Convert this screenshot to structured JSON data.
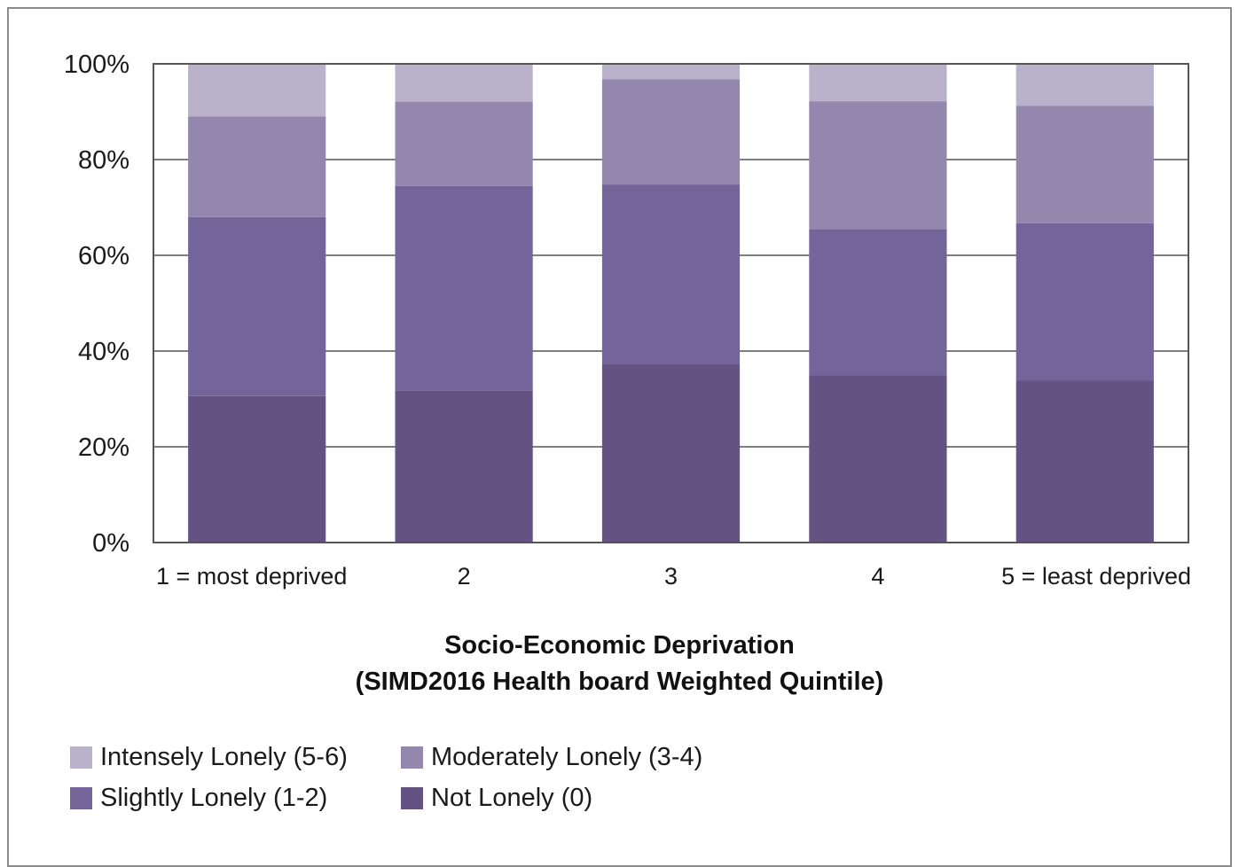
{
  "chart_data": {
    "type": "bar",
    "stacked": true,
    "orientation": "vertical",
    "categories": [
      "1 = most deprived",
      "2",
      "3",
      "4",
      "5 = least deprived"
    ],
    "series": [
      {
        "name": "Not Lonely (0)",
        "color": "#645282",
        "values": [
          30.6,
          31.8,
          37.3,
          34.9,
          33.8
        ]
      },
      {
        "name": "Slightly Lonely (1-2)",
        "color": "#736599",
        "values": [
          37.4,
          42.7,
          37.5,
          30.6,
          32.9
        ]
      },
      {
        "name": "Moderately Lonely (3-4)",
        "color": "#9387ae",
        "values": [
          21.0,
          17.6,
          22.0,
          26.7,
          24.5
        ]
      },
      {
        "name": "Intensely Lonely (5-6)",
        "color": "#bab1ca",
        "values": [
          11.0,
          7.9,
          3.2,
          7.8,
          8.8
        ]
      }
    ],
    "xlabel": [
      "Socio-Economic Deprivation",
      "(SIMD2016 Health board Weighted Quintile)"
    ],
    "ylabel": "",
    "ylim": [
      0,
      100
    ],
    "yticks": [
      "0%",
      "20%",
      "40%",
      "60%",
      "80%",
      "100%"
    ],
    "grid": true,
    "legend_position": "bottom-left",
    "legend_rows": [
      [
        "Intensely Lonely (5-6)",
        "Moderately Lonely (3-4)"
      ],
      [
        "Slightly Lonely (1-2)",
        "Not Lonely (0)"
      ]
    ]
  }
}
